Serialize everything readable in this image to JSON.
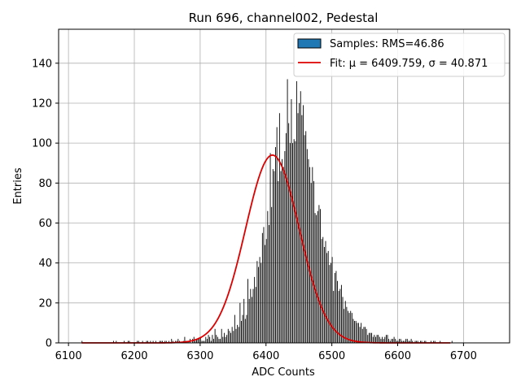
{
  "chart_data": {
    "type": "bar",
    "title": "Run 696, channel002, Pedestal",
    "xlabel": "ADC Counts",
    "ylabel": "Entries",
    "xlim": [
      6085,
      6770
    ],
    "ylim": [
      0,
      157
    ],
    "xticks": [
      6100,
      6200,
      6300,
      6400,
      6500,
      6600,
      6700
    ],
    "yticks": [
      0,
      20,
      40,
      60,
      80,
      100,
      120,
      140
    ],
    "grid": true,
    "legend_position": "top-right",
    "series": [
      {
        "name": "Samples: RMS=46.86",
        "kind": "histogram",
        "color": "#000000",
        "legend_swatch_color": "#1f77b4",
        "x_start": 6120,
        "bin_width": 2,
        "values": [
          1,
          0,
          0,
          0,
          0,
          0,
          0,
          0,
          0,
          0,
          0,
          0,
          0,
          0,
          0,
          0,
          0,
          0,
          0,
          0,
          0,
          0,
          0,
          0,
          1,
          0,
          1,
          0,
          0,
          0,
          0,
          0,
          1,
          0,
          0,
          1,
          1,
          0,
          0,
          0,
          0,
          0,
          1,
          1,
          0,
          0,
          1,
          0,
          0,
          1,
          1,
          0,
          1,
          0,
          1,
          0,
          1,
          0,
          0,
          1,
          1,
          1,
          0,
          1,
          1,
          0,
          1,
          0,
          2,
          1,
          0,
          1,
          1,
          2,
          1,
          0,
          0,
          1,
          3,
          1,
          1,
          1,
          2,
          0,
          2,
          3,
          1,
          2,
          2,
          2,
          3,
          1,
          1,
          1,
          3,
          2,
          4,
          3,
          1,
          4,
          2,
          7,
          4,
          3,
          2,
          2,
          7,
          3,
          5,
          3,
          4,
          7,
          6,
          5,
          8,
          6,
          14,
          7,
          9,
          8,
          20,
          11,
          14,
          22,
          12,
          14,
          32,
          22,
          27,
          23,
          27,
          33,
          28,
          41,
          38,
          43,
          40,
          55,
          58,
          49,
          52,
          66,
          59,
          95,
          68,
          87,
          86,
          98,
          108,
          81,
          115,
          86,
          92,
          88,
          96,
          105,
          132,
          110,
          100,
          122,
          100,
          102,
          101,
          131,
          115,
          120,
          126,
          114,
          119,
          104,
          106,
          97,
          92,
          88,
          80,
          88,
          81,
          65,
          64,
          66,
          69,
          67,
          52,
          53,
          48,
          51,
          45,
          46,
          39,
          40,
          43,
          26,
          35,
          36,
          31,
          26,
          27,
          29,
          23,
          17,
          21,
          18,
          16,
          15,
          16,
          15,
          12,
          11,
          11,
          10,
          10,
          8,
          10,
          7,
          8,
          8,
          7,
          4,
          5,
          5,
          5,
          3,
          4,
          3,
          4,
          4,
          3,
          2,
          3,
          2,
          3,
          4,
          4,
          2,
          1,
          2,
          2,
          3,
          2,
          1,
          1,
          2,
          2,
          1,
          1,
          1,
          2,
          2,
          1,
          1,
          2,
          1,
          0,
          1,
          1,
          1,
          0,
          1,
          1,
          0,
          1,
          1,
          0,
          0,
          0,
          1,
          0,
          1,
          1,
          0,
          0,
          0,
          1,
          0,
          0,
          0,
          0,
          0,
          0,
          0,
          0,
          1
        ]
      },
      {
        "name": "Fit: μ = 6409.759, σ = 40.871",
        "kind": "gaussian",
        "color": "#dd0000",
        "mu": 6409.759,
        "sigma": 40.871,
        "amplitude": 94,
        "x_range": [
          6120,
          6680
        ]
      }
    ]
  }
}
